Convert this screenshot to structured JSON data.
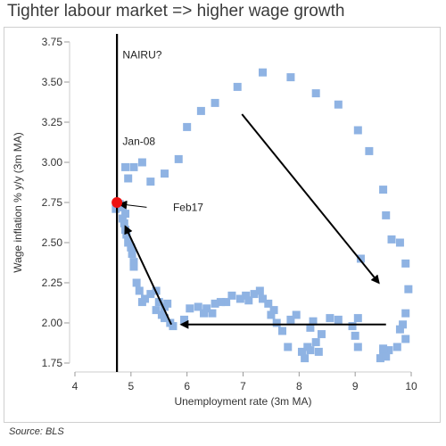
{
  "chart_data": {
    "type": "scatter",
    "title": "Tighter labour market => higher wage growth",
    "xlabel": "Unemployment rate (3m MA)",
    "ylabel": "Wage inflation % y/y (3m MA)",
    "xlim": [
      4,
      10
    ],
    "ylim": [
      1.75,
      3.75
    ],
    "xticks": [
      "4",
      "5",
      "6",
      "7",
      "8",
      "9",
      "10"
    ],
    "yticks": [
      "1.75",
      "2.00",
      "2.25",
      "2.50",
      "2.75",
      "3.00",
      "3.25",
      "3.50",
      "3.75"
    ],
    "grid": false,
    "colors": {
      "points": "#8fb3e3",
      "highlight": "#ee1111",
      "line": "#000000"
    },
    "vertical_line": {
      "x": 4.75,
      "label": "NAIRU?"
    },
    "highlight_point": {
      "x": 4.75,
      "y": 2.75,
      "label": "Feb17"
    },
    "annotations": [
      {
        "text": "Jan-08",
        "x": 4.85,
        "y": 3.13
      },
      {
        "text": "NAIRU?",
        "x": 4.85,
        "y": 3.67
      },
      {
        "text": "Feb17",
        "x": 5.75,
        "y": 2.72
      }
    ],
    "arrows": [
      {
        "from": [
          6.98,
          3.3
        ],
        "to": [
          9.42,
          2.25
        ]
      },
      {
        "from": [
          9.55,
          1.99
        ],
        "to": [
          5.9,
          1.99
        ]
      },
      {
        "from": [
          5.72,
          1.99
        ],
        "to": [
          4.9,
          2.6
        ]
      },
      {
        "from": [
          5.28,
          2.72
        ],
        "to": [
          4.8,
          2.74
        ]
      }
    ],
    "points": [
      [
        4.73,
        2.71
      ],
      [
        4.8,
        2.74
      ],
      [
        4.85,
        2.72
      ],
      [
        4.9,
        2.68
      ],
      [
        4.85,
        2.65
      ],
      [
        4.88,
        2.62
      ],
      [
        4.9,
        2.58
      ],
      [
        4.92,
        2.55
      ],
      [
        4.95,
        2.5
      ],
      [
        5.0,
        2.47
      ],
      [
        5.02,
        2.43
      ],
      [
        5.05,
        2.38
      ],
      [
        4.95,
        2.9
      ],
      [
        4.9,
        2.97
      ],
      [
        5.05,
        2.97
      ],
      [
        5.2,
        3.0
      ],
      [
        5.35,
        2.88
      ],
      [
        5.6,
        2.93
      ],
      [
        5.85,
        3.02
      ],
      [
        6.0,
        3.22
      ],
      [
        6.25,
        3.32
      ],
      [
        6.5,
        3.37
      ],
      [
        6.9,
        3.47
      ],
      [
        7.35,
        3.56
      ],
      [
        7.85,
        3.53
      ],
      [
        8.3,
        3.43
      ],
      [
        8.7,
        3.36
      ],
      [
        9.05,
        3.2
      ],
      [
        9.25,
        3.07
      ],
      [
        9.5,
        2.83
      ],
      [
        9.55,
        2.67
      ],
      [
        9.65,
        2.52
      ],
      [
        9.8,
        2.5
      ],
      [
        9.9,
        2.37
      ],
      [
        9.95,
        2.21
      ],
      [
        9.9,
        2.06
      ],
      [
        9.85,
        1.99
      ],
      [
        9.8,
        1.96
      ],
      [
        9.9,
        1.9
      ],
      [
        9.75,
        1.85
      ],
      [
        9.6,
        1.83
      ],
      [
        9.5,
        1.81
      ],
      [
        9.45,
        1.78
      ],
      [
        9.5,
        1.84
      ],
      [
        9.55,
        1.79
      ],
      [
        9.1,
        2.4
      ],
      [
        9.05,
        2.03
      ],
      [
        8.95,
        1.98
      ],
      [
        9.0,
        1.92
      ],
      [
        9.05,
        1.85
      ],
      [
        8.7,
        2.02
      ],
      [
        8.55,
        2.03
      ],
      [
        8.4,
        1.93
      ],
      [
        8.3,
        1.88
      ],
      [
        8.25,
        2.01
      ],
      [
        8.2,
        1.97
      ],
      [
        8.15,
        1.85
      ],
      [
        8.05,
        1.82
      ],
      [
        8.1,
        1.78
      ],
      [
        8.2,
        1.83
      ],
      [
        8.35,
        1.82
      ],
      [
        7.95,
        2.05
      ],
      [
        7.85,
        2.02
      ],
      [
        7.8,
        1.85
      ],
      [
        7.7,
        1.95
      ],
      [
        7.6,
        2.0
      ],
      [
        7.55,
        2.08
      ],
      [
        7.5,
        2.05
      ],
      [
        7.45,
        2.12
      ],
      [
        7.35,
        2.15
      ],
      [
        7.3,
        2.2
      ],
      [
        7.2,
        2.18
      ],
      [
        7.1,
        2.14
      ],
      [
        7.05,
        2.17
      ],
      [
        6.95,
        2.15
      ],
      [
        6.8,
        2.17
      ],
      [
        6.7,
        2.13
      ],
      [
        6.6,
        2.13
      ],
      [
        6.5,
        2.12
      ],
      [
        6.45,
        2.06
      ],
      [
        6.35,
        2.09
      ],
      [
        6.3,
        2.06
      ],
      [
        6.2,
        2.1
      ],
      [
        6.05,
        2.09
      ],
      [
        5.95,
        2.02
      ],
      [
        5.75,
        1.98
      ],
      [
        5.7,
        2.0
      ],
      [
        5.6,
        2.03
      ],
      [
        5.55,
        2.05
      ],
      [
        5.45,
        2.08
      ],
      [
        5.5,
        2.13
      ],
      [
        5.6,
        2.1
      ],
      [
        5.65,
        2.12
      ],
      [
        5.45,
        2.2
      ],
      [
        5.35,
        2.18
      ],
      [
        5.25,
        2.15
      ],
      [
        5.2,
        2.13
      ],
      [
        5.15,
        2.2
      ],
      [
        5.1,
        2.25
      ],
      [
        5.05,
        2.35
      ]
    ]
  },
  "source": "Source: BLS"
}
